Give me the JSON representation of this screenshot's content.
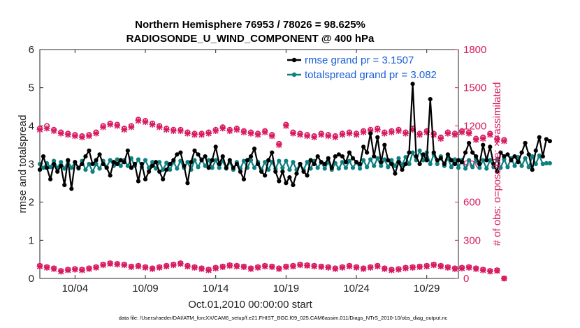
{
  "chart_data": {
    "type": "line",
    "title_line1": "Northern Hemisphere 76953 / 78026 = 98.625%",
    "title_line2": "RADIOSONDE_U_WIND_COMPONENT @ 400 hPa",
    "xlabel": "Oct.01,2010 00:00:00 start",
    "ylabel_left": "rmse and totalspread",
    "ylabel_right": "# of obs: o=possible; ×=assimilated",
    "xlim": [
      1.5,
      31.25
    ],
    "ylim_left": [
      0,
      6
    ],
    "ylim_right": [
      0,
      1800
    ],
    "x_ticks": [
      4,
      9,
      14,
      19,
      24,
      29
    ],
    "x_tick_labels": [
      "10/04",
      "10/09",
      "10/14",
      "10/19",
      "10/24",
      "10/29"
    ],
    "y_left_ticks": [
      "0",
      "1",
      "2",
      "3",
      "4",
      "5",
      "6"
    ],
    "y_right_ticks": [
      "0",
      "300",
      "600",
      "900",
      "1200",
      "1500",
      "1800"
    ],
    "footer": "data file: /Users/raeder/DAI/ATM_forcXX/CAM6_setup/f.e21.FHIST_BGC.f09_025.CAM6assim.011/Diags_NTrS_2010-10/obs_diag_output.nc",
    "colors": {
      "rmse": "#000000",
      "spread": "#0e8080",
      "obs": "#d81b60",
      "legend_text": "#1a5fd6"
    },
    "series": [
      {
        "name": "rmse grand pr = 3.1507",
        "x0": 1.5,
        "dx": 0.25,
        "values": [
          2.85,
          3.2,
          2.9,
          2.6,
          3.0,
          2.8,
          2.95,
          2.45,
          3.1,
          2.35,
          3.05,
          2.9,
          3.0,
          3.2,
          3.35,
          3.0,
          3.1,
          3.25,
          3.0,
          2.9,
          2.7,
          3.05,
          3.0,
          3.1,
          3.05,
          3.35,
          2.9,
          3.0,
          2.55,
          3.0,
          2.6,
          2.8,
          2.95,
          3.05,
          2.8,
          2.6,
          2.85,
          3.0,
          3.1,
          3.25,
          3.3,
          2.95,
          2.5,
          3.05,
          3.35,
          3.25,
          3.1,
          3.2,
          2.9,
          3.1,
          3.45,
          3.0,
          3.2,
          2.9,
          3.1,
          2.9,
          3.0,
          2.8,
          2.6,
          3.1,
          3.2,
          3.4,
          3.0,
          2.8,
          2.7,
          3.1,
          3.3,
          2.8,
          2.55,
          2.8,
          2.5,
          2.65,
          2.45,
          2.75,
          3.0,
          2.8,
          2.7,
          3.1,
          3.0,
          3.2,
          3.05,
          3.0,
          3.15,
          2.9,
          3.2,
          3.25,
          3.2,
          3.05,
          3.3,
          3.15,
          3.05,
          3.0,
          3.45,
          3.3,
          3.8,
          3.2,
          3.7,
          3.05,
          3.5,
          3.1,
          3.0,
          2.75,
          3.05,
          2.85,
          3.0,
          3.3,
          5.1,
          3.2,
          3.0,
          3.25,
          3.1,
          4.7,
          3.3,
          3.1,
          3.15,
          3.0,
          3.25,
          3.1,
          3.0,
          3.1,
          3.05,
          3.3,
          3.55,
          3.3,
          3.2,
          3.0,
          3.5,
          3.1,
          3.45,
          3.0,
          2.8,
          3.3,
          3.2,
          3.25,
          3.1,
          3.2,
          3.05,
          3.3,
          3.55,
          3.25,
          2.85,
          3.35,
          3.7,
          3.2,
          3.65,
          3.6
        ]
      },
      {
        "name": "totalspread grand pr = 3.082",
        "x0": 1.5,
        "dx": 0.25,
        "values": [
          3.0,
          2.9,
          3.02,
          2.92,
          3.08,
          2.9,
          3.05,
          2.88,
          3.08,
          2.9,
          3.05,
          2.88,
          3.08,
          2.85,
          3.0,
          2.8,
          3.0,
          2.88,
          3.08,
          2.92,
          3.1,
          2.95,
          3.12,
          2.95,
          3.1,
          2.95,
          3.15,
          2.95,
          3.12,
          2.92,
          3.1,
          2.9,
          3.05,
          2.88,
          3.05,
          2.85,
          3.03,
          2.85,
          3.05,
          2.88,
          3.08,
          2.9,
          3.05,
          2.85,
          3.1,
          2.92,
          3.12,
          2.95,
          3.1,
          2.9,
          3.1,
          2.9,
          3.08,
          2.88,
          3.05,
          2.85,
          3.05,
          2.88,
          3.08,
          2.9,
          3.1,
          2.9,
          3.05,
          2.85,
          3.05,
          2.85,
          3.05,
          2.88,
          3.08,
          2.9,
          3.08,
          2.85,
          3.05,
          2.85,
          3.0,
          2.85,
          3.05,
          2.88,
          3.08,
          2.9,
          3.05,
          2.88,
          3.05,
          2.85,
          3.02,
          2.88,
          3.05,
          2.9,
          3.08,
          2.9,
          3.05,
          2.88,
          3.1,
          2.92,
          3.12,
          2.95,
          3.15,
          2.95,
          3.12,
          2.92,
          3.1,
          2.95,
          3.15,
          2.98,
          3.18,
          3.0,
          3.3,
          3.1,
          3.35,
          3.1,
          3.3,
          3.0,
          3.25,
          3.0,
          3.2,
          2.95,
          3.15,
          2.92,
          3.12,
          2.9,
          3.1,
          2.88,
          3.1,
          2.92,
          3.12,
          2.9,
          3.1,
          2.88,
          3.1,
          2.92,
          3.12,
          2.9,
          3.12,
          2.92,
          3.15,
          2.95,
          3.18,
          2.95,
          3.15,
          2.92,
          3.2,
          3.0,
          3.22,
          3.0,
          3.02,
          3.02
        ]
      },
      {
        "name": "possible",
        "axis": "right",
        "x0": 1.5,
        "dx": 0.5,
        "values": [
          1180,
          1200,
          1170,
          1150,
          1140,
          1130,
          1120,
          1130,
          1150,
          1200,
          1220,
          1210,
          1180,
          1200,
          1250,
          1240,
          1220,
          1200,
          1180,
          1170,
          1170,
          1150,
          1140,
          1140,
          1150,
          1170,
          1190,
          1170,
          1180,
          1160,
          1150,
          1140,
          1160,
          1130,
          1060,
          1210,
          1150,
          1140,
          1130,
          1120,
          1140,
          1130,
          1120,
          1140,
          1150,
          1140,
          1160,
          1170,
          1180,
          1150,
          1160,
          1170,
          1150,
          1180,
          1140,
          1160,
          1140,
          1110,
          1150,
          1140,
          1160,
          1150,
          1100,
          1110,
          1140,
          1100,
          1090
        ]
      },
      {
        "name": "assimilated",
        "axis": "right",
        "x0": 1.5,
        "dx": 0.5,
        "values": [
          1170,
          1180,
          1160,
          1140,
          1130,
          1120,
          1110,
          1120,
          1140,
          1190,
          1210,
          1200,
          1170,
          1190,
          1240,
          1230,
          1210,
          1190,
          1170,
          1160,
          1160,
          1140,
          1130,
          1130,
          1140,
          1160,
          1180,
          1160,
          1170,
          1150,
          1140,
          1130,
          1150,
          1120,
          1050,
          1200,
          1140,
          1130,
          1120,
          1110,
          1130,
          1120,
          1110,
          1130,
          1140,
          1130,
          1150,
          1160,
          1170,
          1140,
          1150,
          1160,
          1140,
          1170,
          1130,
          1150,
          1130,
          1100,
          1140,
          1130,
          1150,
          1140,
          1090,
          1100,
          1130,
          1090,
          1080
        ]
      },
      {
        "name": "possible (surface)",
        "axis": "right",
        "x0": 1.5,
        "dx": 0.5,
        "values": [
          100,
          90,
          80,
          60,
          70,
          75,
          70,
          80,
          90,
          110,
          120,
          115,
          110,
          95,
          100,
          90,
          80,
          90,
          100,
          110,
          120,
          100,
          90,
          80,
          70,
          85,
          95,
          105,
          100,
          95,
          80,
          90,
          100,
          95,
          80,
          95,
          100,
          110,
          105,
          100,
          95,
          90,
          80,
          90,
          100,
          90,
          80,
          90,
          100,
          80,
          70,
          75,
          85,
          90,
          95,
          100,
          110,
          100,
          90,
          80,
          85,
          90,
          80,
          70,
          60,
          65,
          0
        ]
      },
      {
        "name": "assimilated (surface)",
        "axis": "right",
        "x0": 1.5,
        "dx": 0.5,
        "values": [
          95,
          85,
          75,
          55,
          65,
          70,
          65,
          75,
          85,
          105,
          115,
          110,
          105,
          90,
          95,
          85,
          75,
          85,
          95,
          105,
          115,
          95,
          85,
          75,
          65,
          80,
          90,
          100,
          95,
          90,
          75,
          85,
          95,
          90,
          75,
          90,
          95,
          105,
          100,
          95,
          90,
          85,
          75,
          85,
          95,
          85,
          75,
          85,
          95,
          75,
          65,
          70,
          80,
          85,
          90,
          95,
          105,
          95,
          85,
          75,
          80,
          85,
          75,
          65,
          55,
          60,
          0
        ]
      }
    ]
  }
}
